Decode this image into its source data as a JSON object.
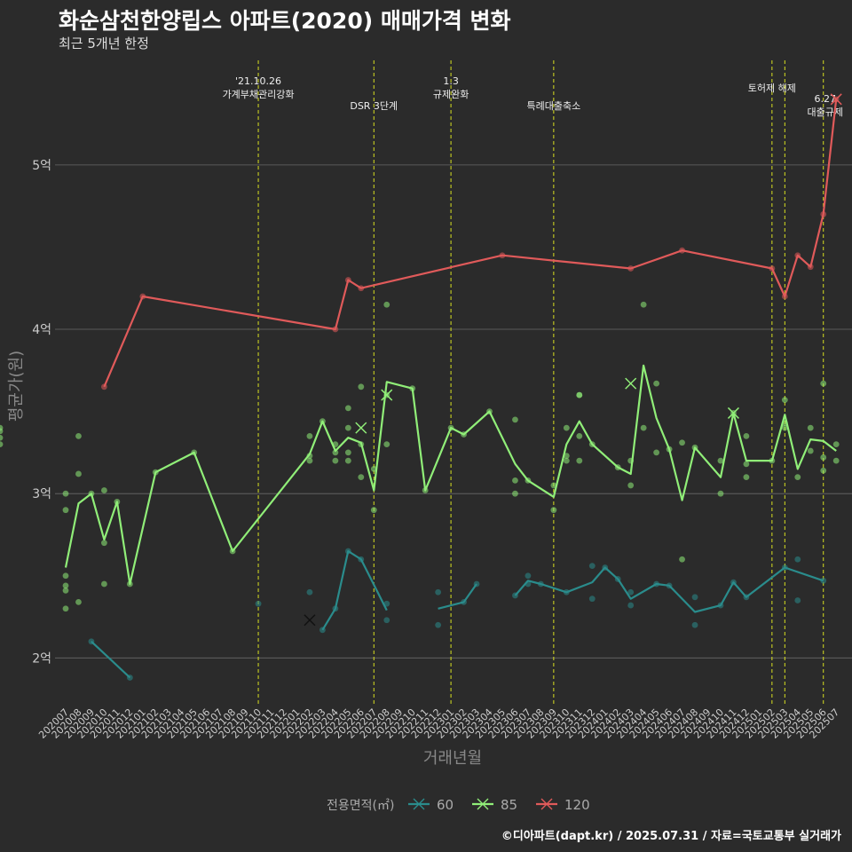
{
  "title": "화순삼천한양립스 아파트(2020) 매매가격 변화",
  "subtitle": "최근 5개년 한정",
  "credit": "©디아파트(dapt.kr) / 2025.07.31 / 자료=국토교통부 실거래가",
  "chart_data": {
    "type": "line",
    "xlabel": "거래년월",
    "ylabel": "평균가(원)",
    "x": [
      "202007",
      "202008",
      "202009",
      "202010",
      "202011",
      "202012",
      "202101",
      "202102",
      "202103",
      "202104",
      "202105",
      "202106",
      "202107",
      "202108",
      "202109",
      "202110",
      "202111",
      "202112",
      "202201",
      "202202",
      "202203",
      "202204",
      "202205",
      "202206",
      "202207",
      "202208",
      "202209",
      "202210",
      "202211",
      "202212",
      "202301",
      "202302",
      "202303",
      "202304",
      "202305",
      "202306",
      "202307",
      "202308",
      "202309",
      "202310",
      "202311",
      "202312",
      "202401",
      "202402",
      "202403",
      "202404",
      "202405",
      "202406",
      "202407",
      "202408",
      "202409",
      "202410",
      "202411",
      "202412",
      "202501",
      "202502",
      "202503",
      "202504",
      "202505",
      "202506",
      "202507"
    ],
    "yticks": [
      {
        "v": 2.0,
        "label": "2억"
      },
      {
        "v": 3.0,
        "label": "3억"
      },
      {
        "v": 4.0,
        "label": "4억"
      },
      {
        "v": 5.0,
        "label": "5억"
      }
    ],
    "ylim": [
      1.71,
      5.68
    ],
    "grid": true,
    "legend": {
      "title": "전용면적(㎡)",
      "placement": "bottom"
    },
    "events": [
      {
        "x": "202110",
        "label": "'21.10.26\n가계부채관리강화"
      },
      {
        "x": "202207",
        "label": "DSR 3단계"
      },
      {
        "x": "202301",
        "label": "1.3\n규제완화"
      },
      {
        "x": "202309",
        "label": "특례대출축소"
      },
      {
        "x": "202502",
        "label": "토허제 해제"
      },
      {
        "x": "202503",
        "label": ""
      },
      {
        "x": "202506",
        "label": "6.27\n대출규제"
      }
    ],
    "series": [
      {
        "name": "60",
        "color": "#2a8c8c",
        "segments": [
          [
            [
              "202009",
              2.1
            ],
            [
              "202012",
              1.88
            ]
          ],
          [
            [
              "202203",
              2.17
            ],
            [
              "202204",
              2.3
            ],
            [
              "202205",
              2.65
            ],
            [
              "202206",
              2.6
            ],
            [
              "202208",
              2.29
            ]
          ],
          [
            [
              "202212",
              2.3
            ],
            [
              "202302",
              2.34
            ],
            [
              "202303",
              2.45
            ]
          ],
          [
            [
              "202306",
              2.38
            ],
            [
              "202307",
              2.47
            ],
            [
              "202308",
              2.45
            ],
            [
              "202310",
              2.4
            ],
            [
              "202312",
              2.46
            ],
            [
              "202401",
              2.55
            ],
            [
              "202402",
              2.48
            ],
            [
              "202403",
              2.36
            ],
            [
              "202405",
              2.45
            ],
            [
              "202406",
              2.44
            ],
            [
              "202408",
              2.28
            ],
            [
              "202410",
              2.32
            ],
            [
              "202411",
              2.46
            ],
            [
              "202412",
              2.37
            ],
            [
              "202503",
              2.55
            ],
            [
              "202506",
              2.47
            ]
          ]
        ],
        "points": [
          [
            "202009",
            2.1
          ],
          [
            "202012",
            1.88
          ],
          [
            "202110",
            2.33
          ],
          [
            "202202",
            2.4
          ],
          [
            "202203",
            2.17
          ],
          [
            "202204",
            2.3
          ],
          [
            "202205",
            2.65
          ],
          [
            "202206",
            2.6
          ],
          [
            "202208",
            2.33
          ],
          [
            "202208",
            2.23
          ],
          [
            "202212",
            2.4
          ],
          [
            "202212",
            2.2
          ],
          [
            "202302",
            2.34
          ],
          [
            "202303",
            2.45
          ],
          [
            "202306",
            2.38
          ],
          [
            "202307",
            2.5
          ],
          [
            "202307",
            2.45
          ],
          [
            "202308",
            2.45
          ],
          [
            "202310",
            2.4
          ],
          [
            "202312",
            2.56
          ],
          [
            "202312",
            2.36
          ],
          [
            "202401",
            2.55
          ],
          [
            "202402",
            2.48
          ],
          [
            "202403",
            2.4
          ],
          [
            "202403",
            2.32
          ],
          [
            "202405",
            2.45
          ],
          [
            "202406",
            2.44
          ],
          [
            "202408",
            2.37
          ],
          [
            "202408",
            2.2
          ],
          [
            "202410",
            2.32
          ],
          [
            "202411",
            2.46
          ],
          [
            "202412",
            2.37
          ],
          [
            "202503",
            2.55
          ],
          [
            "202504",
            2.6
          ],
          [
            "202504",
            2.35
          ],
          [
            "202506",
            2.47
          ]
        ],
        "crosses": [
          [
            "202202",
            2.23
          ]
        ]
      },
      {
        "name": "85",
        "color": "#90ee78",
        "segments": [
          [
            [
              "202007",
              2.55
            ],
            [
              "202008",
              2.94
            ],
            [
              "202009",
              3.0
            ],
            [
              "202010",
              2.72
            ],
            [
              "202011",
              2.95
            ],
            [
              "202012",
              2.45
            ],
            [
              "202102",
              3.13
            ],
            [
              "202105",
              3.25
            ],
            [
              "202108",
              2.65
            ],
            [
              "202202",
              3.24
            ],
            [
              "202203",
              3.44
            ],
            [
              "202204",
              3.26
            ],
            [
              "202205",
              3.34
            ],
            [
              "202206",
              3.31
            ],
            [
              "202207",
              3.02
            ],
            [
              "202208",
              3.68
            ],
            [
              "202210",
              3.64
            ],
            [
              "202211",
              3.02
            ],
            [
              "202301",
              3.4
            ],
            [
              "202302",
              3.36
            ],
            [
              "202304",
              3.5
            ],
            [
              "202306",
              3.18
            ],
            [
              "202307",
              3.08
            ],
            [
              "202309",
              2.98
            ],
            [
              "202310",
              3.3
            ],
            [
              "202311",
              3.44
            ],
            [
              "202312",
              3.3
            ],
            [
              "202402",
              3.16
            ],
            [
              "202403",
              3.12
            ],
            [
              "202404",
              3.78
            ],
            [
              "202405",
              3.46
            ],
            [
              "202406",
              3.27
            ],
            [
              "202407",
              2.96
            ],
            [
              "202408",
              3.28
            ],
            [
              "202410",
              3.1
            ],
            [
              "202411",
              3.49
            ],
            [
              "202412",
              3.2
            ],
            [
              "202502",
              3.2
            ],
            [
              "202503",
              3.48
            ],
            [
              "202504",
              3.15
            ],
            [
              "202505",
              3.33
            ],
            [
              "202506",
              3.32
            ],
            [
              "202507",
              3.26
            ],
            [
              "202508",
              3.36
            ]
          ]
        ],
        "points": [
          [
            "202007",
            3.0
          ],
          [
            "202007",
            2.9
          ],
          [
            "202007",
            2.5
          ],
          [
            "202007",
            2.44
          ],
          [
            "202007",
            2.41
          ],
          [
            "202007",
            2.3
          ],
          [
            "202008",
            3.35
          ],
          [
            "202008",
            3.12
          ],
          [
            "202008",
            2.34
          ],
          [
            "202009",
            3.0
          ],
          [
            "202010",
            3.02
          ],
          [
            "202010",
            2.7
          ],
          [
            "202010",
            2.45
          ],
          [
            "202011",
            2.95
          ],
          [
            "202012",
            2.45
          ],
          [
            "202102",
            3.13
          ],
          [
            "202105",
            3.25
          ],
          [
            "202108",
            2.65
          ],
          [
            "202202",
            3.35
          ],
          [
            "202202",
            3.23
          ],
          [
            "202202",
            3.2
          ],
          [
            "202203",
            3.44
          ],
          [
            "202204",
            3.3
          ],
          [
            "202204",
            3.25
          ],
          [
            "202204",
            3.2
          ],
          [
            "202205",
            3.52
          ],
          [
            "202205",
            3.4
          ],
          [
            "202205",
            3.25
          ],
          [
            "202205",
            3.2
          ],
          [
            "202206",
            3.65
          ],
          [
            "202206",
            3.3
          ],
          [
            "202206",
            3.1
          ],
          [
            "202207",
            3.15
          ],
          [
            "202207",
            2.9
          ],
          [
            "202208",
            4.15
          ],
          [
            "202208",
            3.6
          ],
          [
            "202208",
            3.3
          ],
          [
            "202210",
            3.64
          ],
          [
            "202211",
            3.02
          ],
          [
            "202301",
            3.4
          ],
          [
            "202302",
            3.36
          ],
          [
            "202304",
            3.5
          ],
          [
            "202306",
            3.45
          ],
          [
            "202306",
            3.08
          ],
          [
            "202306",
            3.0
          ],
          [
            "202307",
            3.08
          ],
          [
            "202309",
            3.05
          ],
          [
            "202309",
            2.9
          ],
          [
            "202310",
            3.4
          ],
          [
            "202310",
            3.23
          ],
          [
            "202310",
            3.2
          ],
          [
            "202311",
            3.6
          ],
          [
            "202311",
            3.6
          ],
          [
            "202311",
            3.35
          ],
          [
            "202311",
            3.2
          ],
          [
            "202312",
            3.3
          ],
          [
            "202402",
            3.16
          ],
          [
            "202403",
            3.2
          ],
          [
            "202403",
            3.05
          ],
          [
            "202404",
            4.15
          ],
          [
            "202404",
            3.4
          ],
          [
            "202405",
            3.67
          ],
          [
            "202405",
            3.25
          ],
          [
            "202406",
            3.27
          ],
          [
            "202407",
            3.31
          ],
          [
            "202407",
            2.6
          ],
          [
            "202408",
            3.28
          ],
          [
            "202410",
            3.2
          ],
          [
            "202410",
            3.0
          ],
          [
            "202411",
            3.49
          ],
          [
            "202412",
            3.35
          ],
          [
            "202412",
            3.18
          ],
          [
            "202412",
            3.1
          ],
          [
            "202502",
            3.2
          ],
          [
            "202503",
            3.57
          ],
          [
            "202503",
            3.43
          ],
          [
            "202503",
            3.4
          ],
          [
            "202504",
            3.1
          ],
          [
            "202505",
            3.4
          ],
          [
            "202505",
            3.26
          ],
          [
            "202506",
            3.67
          ],
          [
            "202506",
            3.22
          ],
          [
            "202506",
            3.14
          ],
          [
            "202507",
            3.3
          ],
          [
            "202507",
            3.2
          ],
          [
            "202508",
            3.4
          ],
          [
            "202508",
            3.38
          ],
          [
            "202508",
            3.34
          ],
          [
            "202508",
            3.3
          ]
        ],
        "crosses": [
          [
            "202206",
            3.4
          ],
          [
            "202208",
            3.6
          ],
          [
            "202403",
            3.67
          ],
          [
            "202411",
            3.49
          ]
        ]
      },
      {
        "name": "120",
        "color": "#e05a5a",
        "segments": [
          [
            [
              "202010",
              3.65
            ],
            [
              "202101",
              4.2
            ],
            [
              "202204",
              4.0
            ],
            [
              "202205",
              4.3
            ],
            [
              "202206",
              4.25
            ],
            [
              "202305",
              4.45
            ],
            [
              "202403",
              4.37
            ],
            [
              "202407",
              4.48
            ],
            [
              "202502",
              4.37
            ],
            [
              "202503",
              4.2
            ],
            [
              "202504",
              4.45
            ],
            [
              "202505",
              4.38
            ],
            [
              "202506",
              4.7
            ],
            [
              "202507",
              5.4
            ]
          ]
        ],
        "points": [
          [
            "202010",
            3.65
          ],
          [
            "202101",
            4.2
          ],
          [
            "202204",
            4.0
          ],
          [
            "202205",
            4.3
          ],
          [
            "202206",
            4.25
          ],
          [
            "202305",
            4.45
          ],
          [
            "202403",
            4.37
          ],
          [
            "202407",
            4.48
          ],
          [
            "202502",
            4.37
          ],
          [
            "202503",
            4.2
          ],
          [
            "202504",
            4.45
          ],
          [
            "202505",
            4.38
          ],
          [
            "202506",
            4.7
          ],
          [
            "202507",
            5.4
          ]
        ],
        "crosses": [
          [
            "202507",
            5.4
          ]
        ]
      }
    ]
  }
}
